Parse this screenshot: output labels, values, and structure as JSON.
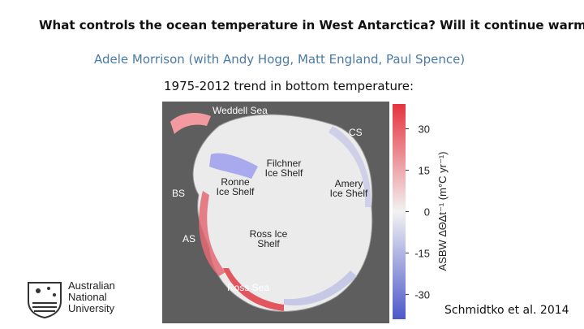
{
  "slide": {
    "title": "What controls the ocean temperature in West Antarctica? Will it continue warming?",
    "authors": "Adele Morrison (with Andy Hogg, Matt England, Paul Spence)",
    "subtitle": "1975-2012 trend in bottom temperature:",
    "citation": "Schmidtko et al. 2014"
  },
  "map": {
    "labels": [
      "Weddell Sea",
      "CS",
      "Filchner Ice Shelf",
      "Ronne Ice Shelf",
      "Amery Ice Shelf",
      "BS",
      "AS",
      "Ross Ice Shelf",
      "Ross Sea"
    ]
  },
  "colorbar": {
    "label": "ASBW ΔΘΔt⁻¹ (m°C yr⁻¹)",
    "range": [
      -39,
      39
    ],
    "ticks": [
      30,
      15,
      0,
      -15,
      -30
    ]
  },
  "logo": {
    "lines": [
      "Australian",
      "National",
      "University"
    ]
  }
}
